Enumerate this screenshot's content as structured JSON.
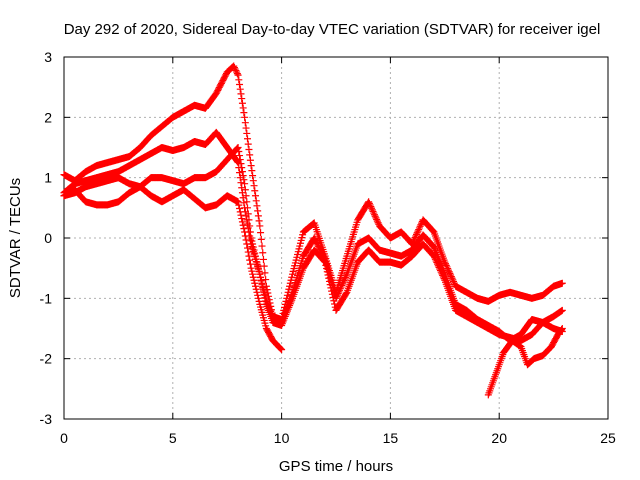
{
  "chart_data": {
    "type": "scatter",
    "title": "Day 292 of 2020, Sidereal Day-to-day VTEC variation (SDTVAR) for receiver igel",
    "xlabel": "GPS time / hours",
    "ylabel": "SDTVAR / TECUs",
    "xlim": [
      0,
      25
    ],
    "ylim": [
      -3,
      3
    ],
    "x_ticks": [
      0,
      5,
      10,
      15,
      20,
      25
    ],
    "y_ticks": [
      -3,
      -2,
      -1,
      0,
      1,
      2,
      3
    ],
    "x_tick_labels": [
      "0",
      "5",
      "10",
      "15",
      "20",
      "25"
    ],
    "y_tick_labels": [
      "-3",
      "-2",
      "-1",
      "0",
      "1",
      "2",
      "3"
    ],
    "grid": true,
    "marker": "plus",
    "color": "#ff0000",
    "series": [
      {
        "x": [
          0.0,
          0.5,
          1.0,
          1.5,
          2.0,
          2.5,
          3.0,
          3.5,
          4.0,
          4.5,
          5.0,
          5.5,
          6.0,
          6.5,
          7.0,
          7.5,
          7.8,
          8.0,
          8.3,
          8.6,
          9.0,
          9.3,
          9.6,
          10.0,
          10.5,
          11.0,
          11.5,
          12.0,
          12.5,
          13.0,
          13.5,
          14.0,
          14.5,
          15.0,
          15.5,
          16.0,
          16.5,
          17.0,
          17.5,
          18.0,
          18.5,
          19.0,
          19.5,
          20.0,
          20.5,
          21.0,
          21.5,
          22.0,
          22.5,
          22.9
        ],
        "y": [
          1.05,
          0.95,
          1.1,
          1.2,
          1.25,
          1.3,
          1.35,
          1.5,
          1.7,
          1.85,
          2.0,
          2.1,
          2.2,
          2.15,
          2.4,
          2.75,
          2.85,
          2.7,
          2.0,
          1.2,
          0.2,
          -0.8,
          -1.3,
          -1.35,
          -0.6,
          0.1,
          0.25,
          -0.3,
          -0.9,
          -0.3,
          0.3,
          0.6,
          0.2,
          0.0,
          0.1,
          -0.1,
          0.3,
          0.1,
          -0.4,
          -0.8,
          -0.9,
          -1.0,
          -1.05,
          -0.95,
          -0.9,
          -0.95,
          -1.0,
          -0.95,
          -0.8,
          -0.75
        ]
      },
      {
        "x": [
          0.0,
          0.5,
          1.0,
          1.5,
          2.0,
          2.5,
          3.0,
          3.5,
          4.0,
          4.5,
          5.0,
          5.5,
          6.0,
          6.5,
          7.0,
          7.5,
          8.0,
          8.3,
          8.6,
          9.0,
          9.3,
          9.6,
          10.0,
          10.5,
          11.0,
          11.5,
          12.0,
          12.5,
          13.0,
          13.5,
          14.0,
          14.5,
          15.0,
          15.5,
          16.0,
          16.5,
          17.0,
          17.5,
          18.0,
          18.5,
          19.0,
          19.5,
          20.0,
          20.5,
          21.0,
          21.5,
          22.0,
          22.5,
          22.9
        ],
        "y": [
          0.75,
          0.9,
          0.95,
          1.0,
          1.05,
          1.1,
          1.2,
          1.3,
          1.4,
          1.5,
          1.45,
          1.5,
          1.6,
          1.55,
          1.75,
          1.5,
          1.25,
          0.5,
          -0.1,
          -0.6,
          -1.05,
          -1.3,
          -1.4,
          -0.9,
          -0.3,
          0.0,
          -0.35,
          -1.0,
          -0.6,
          -0.1,
          0.0,
          -0.2,
          -0.25,
          -0.3,
          -0.2,
          0.05,
          -0.15,
          -0.6,
          -1.1,
          -1.2,
          -1.35,
          -1.45,
          -1.55,
          -1.7,
          -1.6,
          -1.35,
          -1.4,
          -1.5,
          -1.55
        ]
      },
      {
        "x": [
          0.0,
          0.5,
          1.0,
          1.5,
          2.0,
          2.5,
          3.0,
          3.5,
          4.0,
          4.5,
          5.0,
          5.5,
          6.0,
          6.5,
          7.0,
          7.5,
          8.0,
          8.3,
          8.6,
          9.0,
          9.3,
          9.6,
          10.0,
          10.5,
          11.0,
          11.5,
          12.0,
          12.5,
          13.0,
          13.5,
          14.0,
          14.5,
          15.0,
          15.5,
          16.0,
          16.5,
          17.0,
          17.5,
          18.0,
          18.5,
          19.0,
          19.5,
          20.0,
          20.5,
          21.0,
          21.5,
          22.0,
          22.5,
          22.9
        ],
        "y": [
          0.7,
          0.75,
          0.85,
          0.9,
          0.95,
          1.0,
          0.9,
          0.85,
          1.0,
          1.0,
          0.95,
          0.9,
          1.0,
          1.0,
          1.1,
          1.3,
          1.5,
          0.9,
          0.0,
          -0.6,
          -1.1,
          -1.4,
          -1.45,
          -1.0,
          -0.5,
          -0.2,
          -0.4,
          -1.2,
          -0.9,
          -0.4,
          -0.2,
          -0.4,
          -0.4,
          -0.45,
          -0.3,
          -0.1,
          -0.3,
          -0.7,
          -1.2,
          -1.3,
          -1.4,
          -1.5,
          -1.6,
          -1.65,
          -1.7,
          -1.6,
          -1.4,
          -1.3,
          -1.2
        ]
      },
      {
        "x": [
          0.0,
          0.5,
          1.0,
          1.5,
          2.0,
          2.5,
          3.0,
          3.5,
          4.0,
          4.5,
          5.0,
          5.5,
          6.0,
          6.5,
          7.0,
          7.5,
          8.0,
          8.3,
          8.6,
          9.0,
          9.3,
          9.6,
          10.0
        ],
        "y": [
          0.7,
          0.8,
          0.6,
          0.55,
          0.55,
          0.6,
          0.75,
          0.85,
          0.7,
          0.6,
          0.7,
          0.8,
          0.65,
          0.5,
          0.55,
          0.7,
          0.6,
          0.1,
          -0.5,
          -1.1,
          -1.5,
          -1.7,
          -1.85
        ]
      },
      {
        "x": [
          19.5,
          19.8,
          20.2,
          20.6,
          21.0,
          21.3,
          21.6,
          22.0,
          22.4,
          22.7,
          22.9
        ],
        "y": [
          -2.6,
          -2.3,
          -1.9,
          -1.7,
          -1.8,
          -2.1,
          -2.0,
          -1.95,
          -1.8,
          -1.6,
          -1.5
        ]
      }
    ]
  }
}
